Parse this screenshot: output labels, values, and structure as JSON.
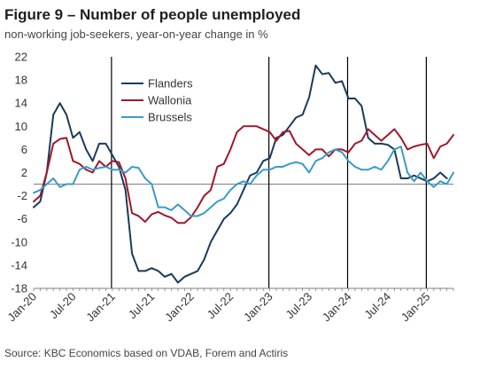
{
  "header": {
    "title": "Figure 9 – Number of people unemployed",
    "subtitle": "non-working job-seekers, year-on-year change in %"
  },
  "footer": {
    "source": "Source: KBC Economics based on VDAB, Forem and Actiris"
  },
  "colors": {
    "flanders": "#1b3a5c",
    "wallonia": "#a0182a",
    "brussels": "#3a9bc8",
    "zero_line": "#7f7f7f",
    "vertical_line": "#000000",
    "axis": "#7f7f7f"
  },
  "chart_data": {
    "type": "line",
    "title": "Figure 9 – Number of people unemployed",
    "subtitle": "non-working job-seekers, year-on-year change in %",
    "xlabel": "",
    "ylabel": "",
    "ylim": [
      -18,
      22
    ],
    "yticks": [
      "22",
      "18",
      "14",
      "10",
      "6",
      "2",
      "-2",
      "-6",
      "-10",
      "-14",
      "-18"
    ],
    "x_tick_labels": [
      "Jan-20",
      "Jul-20",
      "Jan-21",
      "Jul-21",
      "Jan-22",
      "Jul-22",
      "Jan-23",
      "Jul-23",
      "Jan-24",
      "Jul-24",
      "Jan-25"
    ],
    "x_tick_months": [
      0,
      6,
      12,
      18,
      24,
      30,
      36,
      42,
      48,
      54,
      60
    ],
    "vertical_lines_at": [
      "Jan-21",
      "Jan-23",
      "Jan-24",
      "Jan-25"
    ],
    "legend_position": "top-left",
    "grid": "horizontal",
    "series": [
      {
        "name": "Flanders",
        "color": "#1b3a5c",
        "values": [
          -4,
          -3,
          2,
          12,
          14,
          12,
          8,
          9,
          6,
          4,
          7,
          7,
          5,
          3,
          -1,
          -12,
          -15,
          -15,
          -14.5,
          -15,
          -16,
          -15.5,
          -17,
          -16,
          -15.5,
          -15,
          -13,
          -10,
          -8,
          -6,
          -5,
          -3.5,
          -1,
          1.5,
          2,
          4,
          4.5,
          8,
          8.5,
          10,
          11.5,
          12,
          15,
          20.5,
          19,
          19.2,
          17.5,
          17.8,
          14.8,
          14.8,
          13.5,
          8,
          7,
          7,
          6.8,
          6,
          1,
          1,
          1.5,
          1,
          0.5,
          1,
          2,
          1
        ],
        "x_start": "Jan-20"
      },
      {
        "name": "Wallonia",
        "color": "#a0182a",
        "values": [
          -3,
          -2,
          2,
          7,
          7.8,
          8,
          4,
          3.5,
          2.5,
          2,
          4,
          3,
          4,
          3.8,
          1,
          -5,
          -5.5,
          -6.5,
          -5.2,
          -4.8,
          -5.4,
          -5.8,
          -6.7,
          -6.7,
          -5.7,
          -4,
          -2,
          -1,
          3,
          3.5,
          6,
          9,
          10,
          10,
          10,
          9.5,
          9,
          7.5,
          9,
          9.2,
          7,
          6,
          5,
          6,
          6,
          4.8,
          6,
          6,
          5.5,
          7,
          7.5,
          9.5,
          8.5,
          7.5,
          8.5,
          9.5,
          8,
          6,
          6.5,
          6.8,
          7,
          4.5,
          6.5,
          7,
          8.5
        ],
        "x_start": "Jan-20"
      },
      {
        "name": "Brussels",
        "color": "#3a9bc8",
        "values": [
          -1.5,
          -1,
          0,
          1,
          -0.5,
          0,
          0,
          2.5,
          3,
          2.5,
          2.8,
          3,
          2.5,
          2.5,
          2,
          3,
          2.8,
          1,
          0,
          -4,
          -4,
          -4.5,
          -3.5,
          -4.5,
          -5.5,
          -5.5,
          -5,
          -4,
          -3,
          -2.5,
          -1,
          0,
          0.5,
          0,
          1.5,
          2.5,
          2.5,
          3,
          3,
          3.5,
          3.8,
          3.5,
          2,
          4,
          4.5,
          5.5,
          6,
          5.5,
          4,
          3,
          2.5,
          2.5,
          3,
          2.5,
          4,
          6,
          6.5,
          2,
          0.5,
          2,
          0.5,
          -0.5,
          0.5,
          0,
          2
        ],
        "x_start": "Jan-20"
      }
    ]
  }
}
